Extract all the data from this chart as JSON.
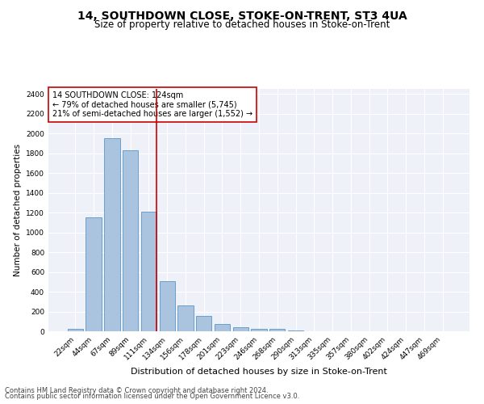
{
  "title": "14, SOUTHDOWN CLOSE, STOKE-ON-TRENT, ST3 4UA",
  "subtitle": "Size of property relative to detached houses in Stoke-on-Trent",
  "xlabel": "Distribution of detached houses by size in Stoke-on-Trent",
  "ylabel": "Number of detached properties",
  "categories": [
    "22sqm",
    "44sqm",
    "67sqm",
    "89sqm",
    "111sqm",
    "134sqm",
    "156sqm",
    "178sqm",
    "201sqm",
    "223sqm",
    "246sqm",
    "268sqm",
    "290sqm",
    "313sqm",
    "335sqm",
    "357sqm",
    "380sqm",
    "402sqm",
    "424sqm",
    "447sqm",
    "469sqm"
  ],
  "values": [
    22,
    1150,
    1950,
    1830,
    1210,
    510,
    260,
    155,
    75,
    40,
    28,
    22,
    10,
    2,
    0,
    0,
    0,
    0,
    0,
    0,
    2
  ],
  "bar_color": "#aac4e0",
  "bar_edge_color": "#5a96c8",
  "vline_color": "#cc0000",
  "vline_bar_index": 4,
  "annotation_text": "14 SOUTHDOWN CLOSE: 124sqm\n← 79% of detached houses are smaller (5,745)\n21% of semi-detached houses are larger (1,552) →",
  "annotation_box_color": "#ffffff",
  "annotation_box_edge": "#cc0000",
  "ylim": [
    0,
    2450
  ],
  "yticks": [
    0,
    200,
    400,
    600,
    800,
    1000,
    1200,
    1400,
    1600,
    1800,
    2000,
    2200,
    2400
  ],
  "background_color": "#eef2f8",
  "grid_color": "#ffffff",
  "footer_line1": "Contains HM Land Registry data © Crown copyright and database right 2024.",
  "footer_line2": "Contains public sector information licensed under the Open Government Licence v3.0.",
  "title_fontsize": 10,
  "subtitle_fontsize": 8.5,
  "xlabel_fontsize": 8,
  "ylabel_fontsize": 7.5,
  "tick_fontsize": 6.5,
  "annotation_fontsize": 7,
  "footer_fontsize": 6
}
